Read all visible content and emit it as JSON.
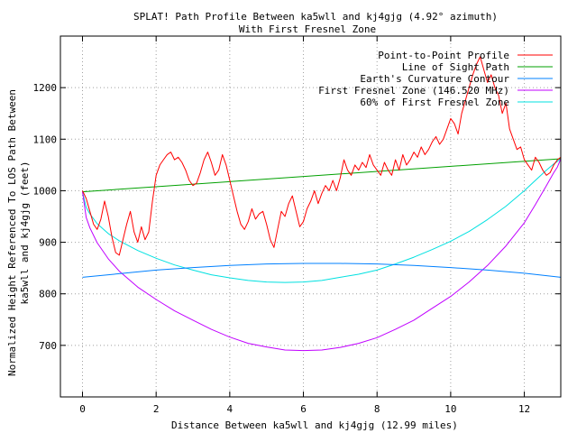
{
  "chart_data": {
    "type": "line",
    "title": "SPLAT! Path Profile Between ka5wll and kj4gjg (4.92° azimuth)",
    "subtitle": "With First Fresnel Zone",
    "xlabel": "Distance Between ka5wll and kj4gjg (12.99 miles)",
    "ylabel_line1": "Normalized Height Referenced To LOS Path Between",
    "ylabel_line2": "ka5wll and kj4gjg (feet)",
    "xlim": [
      -0.6,
      12.99
    ],
    "ylim": [
      600,
      1300
    ],
    "x_ticks": [
      {
        "value": 0,
        "label": "0"
      },
      {
        "value": 2,
        "label": "2"
      },
      {
        "value": 4,
        "label": "4"
      },
      {
        "value": 6,
        "label": "6"
      },
      {
        "value": 8,
        "label": "8"
      },
      {
        "value": 10,
        "label": "10"
      },
      {
        "value": 12,
        "label": "12"
      }
    ],
    "y_ticks": [
      {
        "value": 700,
        "label": "700"
      },
      {
        "value": 800,
        "label": "800"
      },
      {
        "value": 900,
        "label": "900"
      },
      {
        "value": 1000,
        "label": "1000"
      },
      {
        "value": 1100,
        "label": "1100"
      },
      {
        "value": 1200,
        "label": "1200"
      }
    ],
    "grid": true,
    "legend_position": "top-right",
    "series": [
      {
        "name": "Point-to-Point Profile",
        "color": "#ff0000",
        "x": [
          0,
          0.1,
          0.2,
          0.3,
          0.4,
          0.5,
          0.6,
          0.7,
          0.8,
          0.9,
          1.0,
          1.1,
          1.2,
          1.3,
          1.4,
          1.5,
          1.6,
          1.7,
          1.8,
          1.9,
          2.0,
          2.1,
          2.2,
          2.3,
          2.4,
          2.5,
          2.6,
          2.7,
          2.8,
          2.9,
          3.0,
          3.1,
          3.2,
          3.3,
          3.4,
          3.5,
          3.6,
          3.7,
          3.8,
          3.9,
          4.0,
          4.1,
          4.2,
          4.3,
          4.4,
          4.5,
          4.6,
          4.7,
          4.8,
          4.9,
          5.0,
          5.1,
          5.2,
          5.3,
          5.4,
          5.5,
          5.6,
          5.7,
          5.8,
          5.9,
          6.0,
          6.1,
          6.2,
          6.3,
          6.4,
          6.5,
          6.6,
          6.7,
          6.8,
          6.9,
          7.0,
          7.1,
          7.2,
          7.3,
          7.4,
          7.5,
          7.6,
          7.7,
          7.8,
          7.9,
          8.0,
          8.1,
          8.2,
          8.3,
          8.4,
          8.5,
          8.6,
          8.7,
          8.8,
          8.9,
          9.0,
          9.1,
          9.2,
          9.3,
          9.4,
          9.5,
          9.6,
          9.7,
          9.8,
          9.9,
          10.0,
          10.1,
          10.2,
          10.3,
          10.4,
          10.5,
          10.6,
          10.7,
          10.8,
          10.9,
          11.0,
          11.1,
          11.2,
          11.3,
          11.4,
          11.5,
          11.6,
          11.7,
          11.8,
          11.9,
          12.0,
          12.1,
          12.2,
          12.3,
          12.4,
          12.5,
          12.6,
          12.7,
          12.8,
          12.9,
          12.99
        ],
        "y": [
          1000,
          985,
          960,
          935,
          925,
          945,
          980,
          950,
          910,
          880,
          875,
          905,
          935,
          960,
          920,
          900,
          930,
          905,
          920,
          980,
          1030,
          1050,
          1060,
          1070,
          1075,
          1060,
          1065,
          1055,
          1040,
          1020,
          1010,
          1015,
          1035,
          1060,
          1075,
          1055,
          1030,
          1040,
          1070,
          1050,
          1020,
          990,
          960,
          935,
          925,
          940,
          965,
          945,
          955,
          960,
          935,
          905,
          890,
          925,
          960,
          950,
          975,
          990,
          960,
          930,
          940,
          965,
          980,
          1000,
          975,
          995,
          1010,
          1000,
          1020,
          1000,
          1025,
          1060,
          1040,
          1030,
          1050,
          1040,
          1055,
          1045,
          1070,
          1050,
          1040,
          1030,
          1055,
          1040,
          1030,
          1060,
          1040,
          1070,
          1050,
          1060,
          1075,
          1065,
          1085,
          1070,
          1080,
          1095,
          1105,
          1090,
          1100,
          1120,
          1140,
          1130,
          1110,
          1150,
          1175,
          1200,
          1225,
          1245,
          1260,
          1235,
          1210,
          1225,
          1200,
          1185,
          1150,
          1170,
          1120,
          1100,
          1080,
          1085,
          1060,
          1050,
          1040,
          1065,
          1055,
          1040,
          1030,
          1035,
          1050,
          1060,
          1065
        ]
      },
      {
        "name": "Line of Sight Path",
        "color": "#00a000",
        "x": [
          0,
          12.99
        ],
        "y": [
          998,
          1062
        ]
      },
      {
        "name": "Earth's Curvature Contour",
        "color": "#0080ff",
        "x": [
          0,
          1.0,
          2.0,
          3.0,
          4.0,
          5.0,
          6.0,
          7.0,
          8.0,
          9.0,
          10.0,
          11.0,
          12.0,
          12.99
        ],
        "y": [
          832,
          839,
          846,
          851,
          855,
          858,
          859,
          859,
          858,
          855,
          851,
          846,
          840,
          832
        ]
      },
      {
        "name": "First Fresnel Zone (146.520 MHz)",
        "color": "#c000ff",
        "x": [
          0,
          0.1,
          0.2,
          0.4,
          0.7,
          1.0,
          1.5,
          2.0,
          2.5,
          3.0,
          3.5,
          4.0,
          4.5,
          5.0,
          5.5,
          6.0,
          6.5,
          7.0,
          7.5,
          8.0,
          8.5,
          9.0,
          9.5,
          10.0,
          10.5,
          11.0,
          11.5,
          12.0,
          12.3,
          12.6,
          12.8,
          12.9,
          12.99
        ],
        "y": [
          998,
          948,
          928,
          899,
          868,
          844,
          813,
          789,
          767,
          749,
          731,
          716,
          704,
          697,
          691,
          690,
          691,
          696,
          704,
          715,
          731,
          749,
          772,
          795,
          823,
          855,
          893,
          938,
          973,
          1010,
          1035,
          1046,
          1062
        ]
      },
      {
        "name": "60% of First Fresnel Zone",
        "color": "#00e0e0",
        "x": [
          0,
          0.1,
          0.2,
          0.4,
          0.7,
          1.0,
          1.5,
          2.0,
          2.5,
          3.0,
          3.5,
          4.0,
          4.5,
          5.0,
          5.5,
          6.0,
          6.5,
          7.0,
          7.5,
          8.0,
          8.5,
          9.0,
          9.5,
          10.0,
          10.5,
          11.0,
          11.5,
          12.0,
          12.3,
          12.6,
          12.8,
          12.9,
          12.99
        ],
        "y": [
          998,
          968,
          955,
          936,
          917,
          903,
          884,
          869,
          856,
          846,
          837,
          831,
          826,
          823,
          822,
          823,
          826,
          832,
          838,
          846,
          858,
          871,
          886,
          902,
          921,
          944,
          970,
          1000,
          1020,
          1040,
          1052,
          1057,
          1062
        ]
      }
    ]
  }
}
